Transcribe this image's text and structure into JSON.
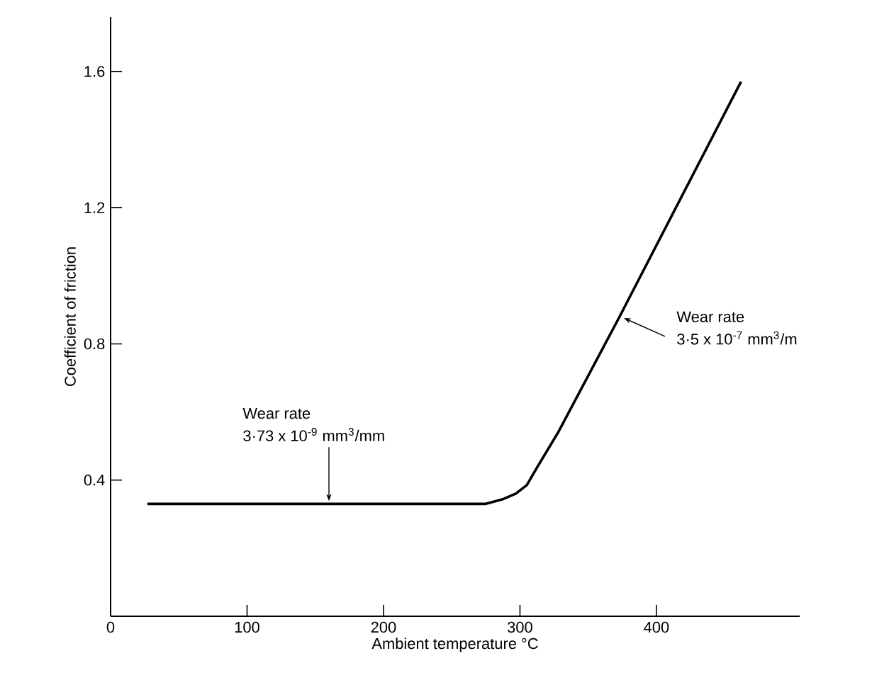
{
  "chart_data": {
    "type": "line",
    "xlabel": "Ambient temperature °C",
    "ylabel": "Coefficient of friction",
    "x": [
      27,
      100,
      200,
      275,
      287,
      297,
      305,
      313,
      328,
      373,
      462
    ],
    "series": [
      {
        "color": "#000000",
        "values": [
          0.33,
          0.33,
          0.33,
          0.33,
          0.343,
          0.36,
          0.385,
          0.44,
          0.54,
          0.88,
          1.57
        ]
      }
    ],
    "xlim": [
      0,
      505
    ],
    "ylim": [
      0,
      1.76
    ],
    "xticks": [
      0,
      100,
      200,
      300,
      400
    ],
    "yticks": [
      0.4,
      0.8,
      1.2,
      1.6
    ],
    "annotations": [
      "Wear rate",
      {
        "text": "3·73 x 10$^{-9}$ mm$^{3}$/mm",
        "x": 160,
        "y": 0.33
      },
      "Wear rate",
      {
        "text": "3·5 x 10$^{-7}$ mm$^{3}$/m",
        "x": 373,
        "y": 0.88
      }
    ],
    "grid": false,
    "marker": "none",
    "line_style": "solid"
  }
}
